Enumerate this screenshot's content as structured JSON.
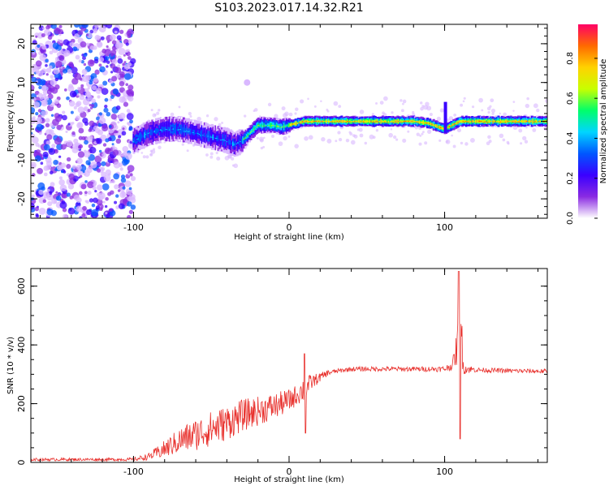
{
  "figure": {
    "title": "S103.2023.017.14.32.R21"
  },
  "colors": {
    "snr_line": "#e8302c",
    "colormap": [
      "#ffffff",
      "#d9b8ff",
      "#8a2be2",
      "#3a00ff",
      "#0057ff",
      "#00d5ff",
      "#00ff6a",
      "#c8ff00",
      "#ffd200",
      "#ff6a00",
      "#ff0066"
    ],
    "axis": "#000000"
  },
  "chart_data": [
    {
      "type": "heatmap",
      "title": "",
      "xlabel": "Height of straight line (km)",
      "ylabel": "Frequency (Hz)",
      "xlim": [
        -166,
        166
      ],
      "ylim": [
        -25,
        25
      ],
      "x_ticks": [
        -100,
        0,
        100
      ],
      "y_ticks": [
        -20,
        -10,
        0,
        10,
        20
      ],
      "colorbar": {
        "label": "Normalized spectral amplitude",
        "range": [
          0,
          0.97
        ],
        "ticks": [
          0.0,
          0.2,
          0.4,
          0.6,
          0.8
        ],
        "tick_labels": [
          "0.0",
          "0.2",
          "0.4",
          "0.6",
          "0.8"
        ]
      },
      "noise_region_x": [
        -166,
        -100
      ],
      "center_frequency_trace": {
        "x": [
          -100,
          -90,
          -80,
          -70,
          -60,
          -50,
          -40,
          -35,
          -30,
          -25,
          -20,
          -15,
          -10,
          -5,
          0,
          10,
          20,
          40,
          60,
          80,
          90,
          100,
          110,
          130,
          150,
          166
        ],
        "y": [
          -5,
          -3,
          -2,
          -2,
          -3,
          -4,
          -5,
          -6,
          -5,
          -3,
          -1,
          -1,
          -1,
          -1.5,
          -1,
          0,
          0,
          0,
          0,
          0,
          -0.5,
          -2,
          0,
          0,
          0,
          0
        ]
      },
      "grid": false
    },
    {
      "type": "line",
      "title": "",
      "xlabel": "Height of straight line (km)",
      "ylabel": "SNR (10 * v/v)",
      "xlim": [
        -166,
        166
      ],
      "ylim": [
        0,
        660
      ],
      "x_ticks": [
        -100,
        0,
        100
      ],
      "y_ticks": [
        0,
        200,
        400,
        600
      ],
      "series": [
        {
          "x": [
            -166,
            -150,
            -130,
            -110,
            -100,
            -90,
            -80,
            -70,
            -60,
            -50,
            -40,
            -30,
            -20,
            -10,
            0,
            5,
            10,
            15,
            20,
            25,
            30,
            40,
            60,
            80,
            100,
            105,
            108,
            110,
            112,
            120,
            140,
            166
          ],
          "y": [
            10,
            10,
            10,
            10,
            10,
            20,
            45,
            75,
            95,
            115,
            135,
            160,
            175,
            190,
            210,
            230,
            250,
            275,
            290,
            305,
            310,
            318,
            318,
            318,
            318,
            330,
            390,
            520,
            320,
            315,
            312,
            310
          ],
          "noise_amplitude": [
            5,
            5,
            5,
            5,
            6,
            12,
            30,
            45,
            55,
            60,
            60,
            55,
            50,
            45,
            40,
            35,
            45,
            25,
            15,
            10,
            8,
            8,
            8,
            8,
            10,
            15,
            60,
            150,
            20,
            8,
            8,
            8
          ]
        }
      ],
      "grid": false
    }
  ]
}
